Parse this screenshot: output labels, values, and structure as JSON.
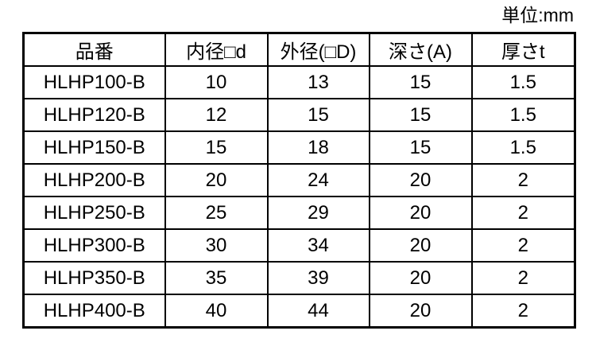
{
  "unit_label": "単位:mm",
  "table": {
    "columns": {
      "part_number": "品番",
      "inner_diameter": "内径□d",
      "outer_diameter": "外径(□D)",
      "depth": "深さ(A)",
      "thickness": "厚さt"
    },
    "rows": [
      [
        "HLHP100-B",
        "10",
        "13",
        "15",
        "1.5"
      ],
      [
        "HLHP120-B",
        "12",
        "15",
        "15",
        "1.5"
      ],
      [
        "HLHP150-B",
        "15",
        "18",
        "15",
        "1.5"
      ],
      [
        "HLHP200-B",
        "20",
        "24",
        "20",
        "2"
      ],
      [
        "HLHP250-B",
        "25",
        "29",
        "20",
        "2"
      ],
      [
        "HLHP300-B",
        "30",
        "34",
        "20",
        "2"
      ],
      [
        "HLHP350-B",
        "35",
        "39",
        "20",
        "2"
      ],
      [
        "HLHP400-B",
        "40",
        "44",
        "20",
        "2"
      ]
    ]
  },
  "colors": {
    "background": "#ffffff",
    "border": "#000000",
    "text": "#000000"
  }
}
